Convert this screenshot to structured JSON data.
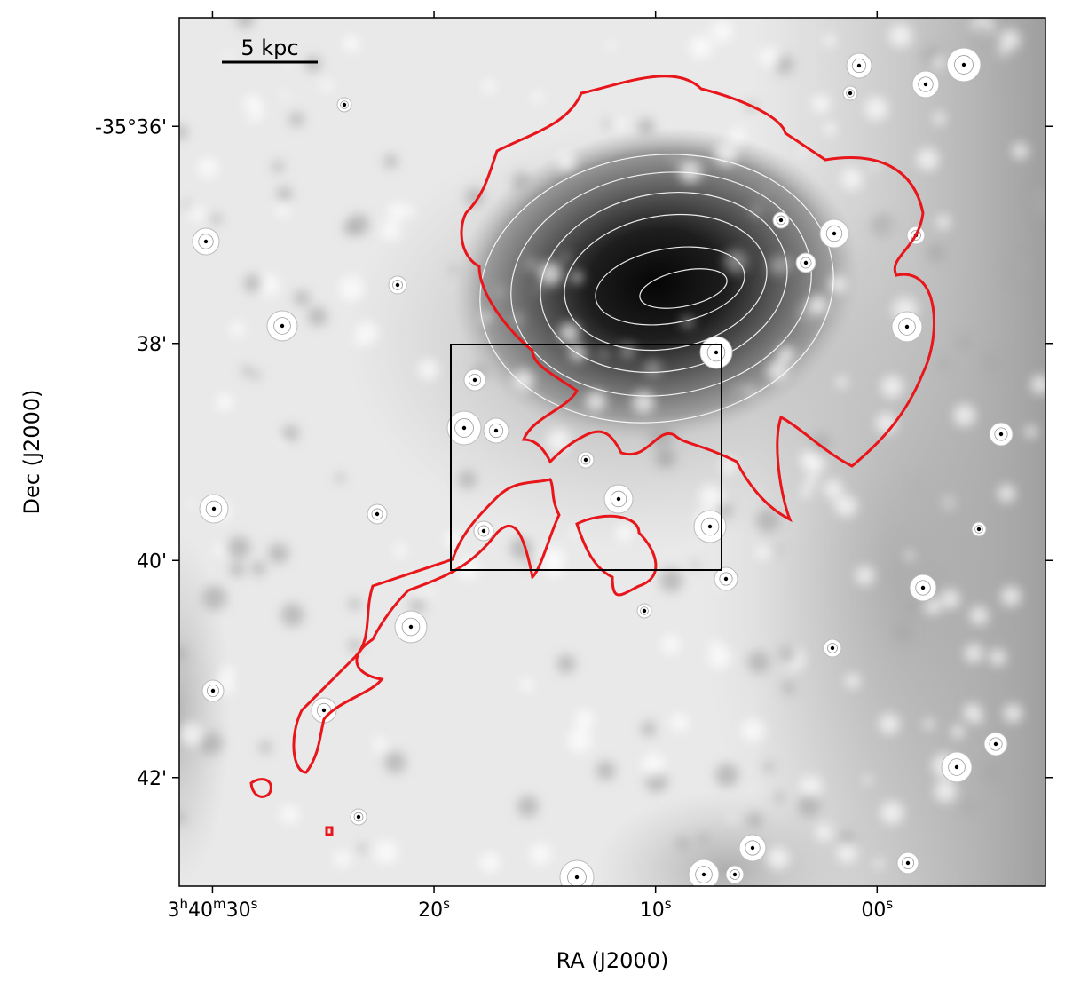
{
  "chart_data": {
    "type": "image",
    "xlabel": "RA (J2000)",
    "ylabel": "Dec (J2000)",
    "scale_bar_label": "5 kpc",
    "xlim": [
      31.5,
      -7.6
    ],
    "xticks": [
      {
        "value": 30,
        "label": "3h40m30s"
      },
      {
        "value": 20,
        "label": "20s"
      },
      {
        "value": 10,
        "label": "10s"
      },
      {
        "value": 0,
        "label": "00s"
      }
    ],
    "ylim": [
      43,
      35
    ],
    "yticks": [
      {
        "value": 36,
        "label": "-35°36'"
      },
      {
        "value": 38,
        "label": "38'"
      },
      {
        "value": 40,
        "label": "40'"
      },
      {
        "value": 42,
        "label": "42'"
      }
    ],
    "contour_color": "#e8161b"
  }
}
